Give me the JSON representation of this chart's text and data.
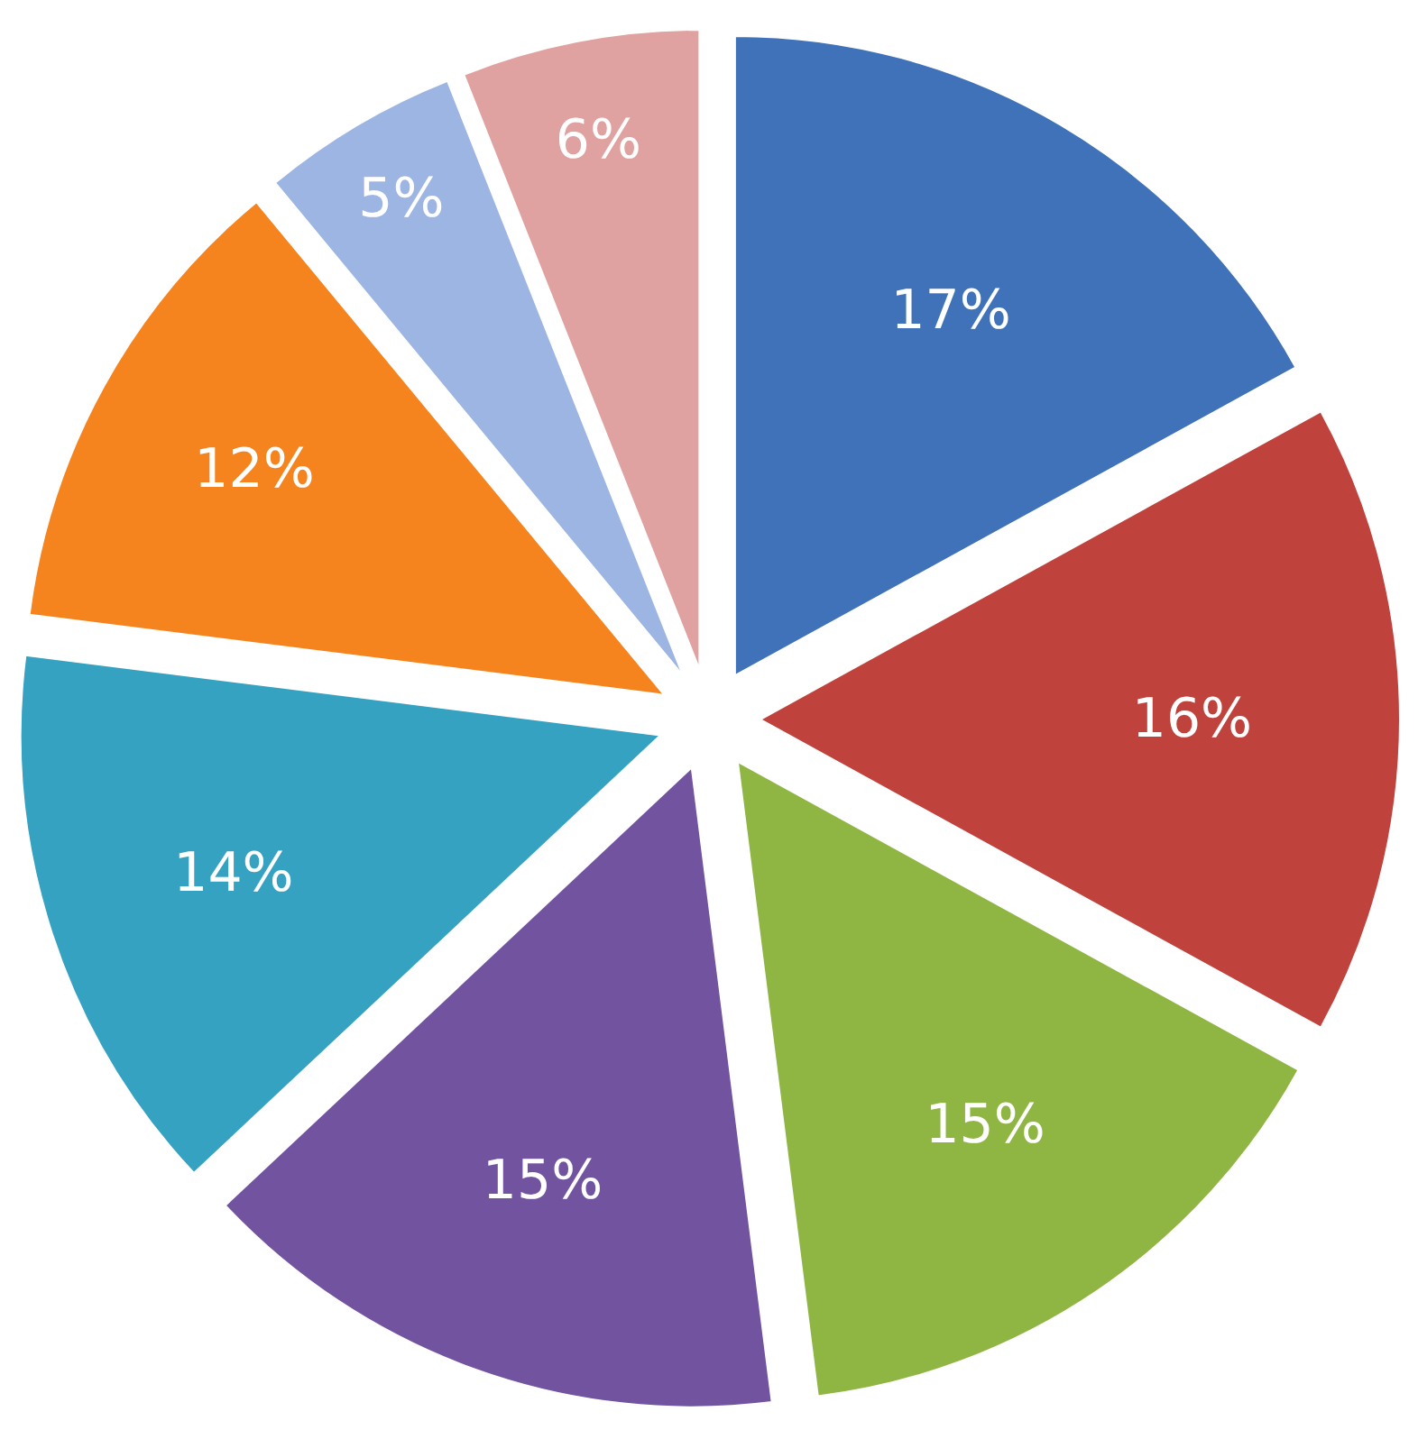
{
  "chart_data": {
    "type": "pie",
    "categories": [
      null,
      null,
      null,
      null,
      null,
      null,
      null,
      null
    ],
    "values": [
      17,
      16,
      15,
      15,
      14,
      12,
      5,
      6
    ],
    "value_labels": [
      "17%",
      "16%",
      "15%",
      "15%",
      "14%",
      "12%",
      "5%",
      "6%"
    ],
    "colors": [
      "#3f72b8",
      "#c0423d",
      "#8fb543",
      "#7153a0",
      "#35a2c2",
      "#f5841f",
      "#9db5e2",
      "#e0a2a0"
    ],
    "legend": false
  }
}
